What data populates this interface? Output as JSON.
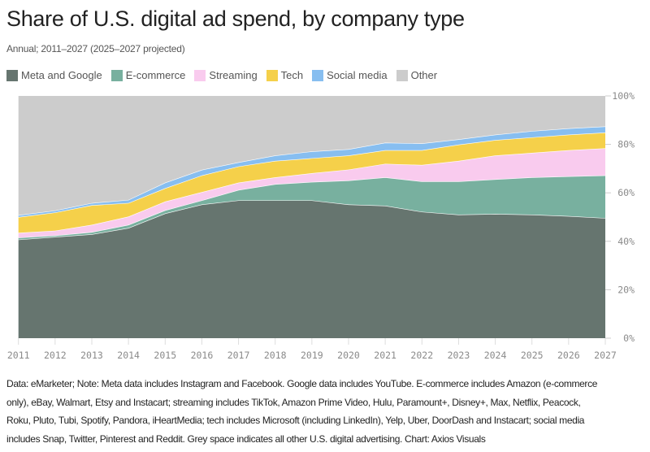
{
  "header": {
    "title": "Share of U.S. digital ad spend, by company type",
    "subtitle": "Annual; 2011–2027 (2025–2027 projected)"
  },
  "chart_data": {
    "type": "area",
    "stacked": true,
    "title": "Share of U.S. digital ad spend, by company type",
    "subtitle": "Annual; 2011–2027 (2025–2027 projected)",
    "x": [
      2011,
      2012,
      2013,
      2014,
      2015,
      2016,
      2017,
      2018,
      2019,
      2020,
      2021,
      2022,
      2023,
      2024,
      2025,
      2026,
      2027
    ],
    "x_tick_labels": [
      "2011",
      "2012",
      "2013",
      "2014",
      "2015",
      "2016",
      "2017",
      "2018",
      "2019",
      "2020",
      "2021",
      "2022",
      "2023",
      "2024",
      "2025",
      "2026",
      "2027"
    ],
    "y_tick_labels": [
      "0%",
      "20%",
      "40%",
      "60%",
      "80%",
      "100%"
    ],
    "y_ticks": [
      0,
      20,
      40,
      60,
      80,
      100
    ],
    "ylim": [
      0,
      100
    ],
    "grid": true,
    "legend_placement": "top",
    "series": [
      {
        "name": "Meta and Google",
        "color": "#66756f",
        "values": [
          40.7,
          41.8,
          42.9,
          45.5,
          51.5,
          55.2,
          56.9,
          56.9,
          56.9,
          55.2,
          54.7,
          52.2,
          51.0,
          51.3,
          51.0,
          50.4,
          49.6
        ]
      },
      {
        "name": "E-commerce",
        "color": "#78b09f",
        "values": [
          0.8,
          0.6,
          0.9,
          1.3,
          1.3,
          1.7,
          4.3,
          6.7,
          7.6,
          9.9,
          11.7,
          12.5,
          13.7,
          14.3,
          15.4,
          16.4,
          17.6
        ]
      },
      {
        "name": "Streaming",
        "color": "#f9cbee",
        "values": [
          2.0,
          2.0,
          3.0,
          3.4,
          3.6,
          3.4,
          3.0,
          2.8,
          3.6,
          4.5,
          5.6,
          6.8,
          8.5,
          9.8,
          10.1,
          10.8,
          11.2
        ]
      },
      {
        "name": "Tech",
        "color": "#f5d04a",
        "values": [
          6.5,
          7.5,
          8.1,
          5.6,
          5.5,
          6.9,
          6.7,
          6.8,
          6.2,
          5.8,
          5.6,
          6.1,
          6.7,
          6.4,
          6.4,
          6.4,
          6.5
        ]
      },
      {
        "name": "Social media",
        "color": "#87bef0",
        "values": [
          0.8,
          0.8,
          0.9,
          1.3,
          2.3,
          2.3,
          1.7,
          2.2,
          2.8,
          2.6,
          3.1,
          2.8,
          2.2,
          2.2,
          2.6,
          2.6,
          2.5
        ]
      },
      {
        "name": "Other",
        "color": "#cccccc",
        "values": [
          49.2,
          47.3,
          44.2,
          42.9,
          35.8,
          30.5,
          27.4,
          24.6,
          22.9,
          22.0,
          19.3,
          19.6,
          17.9,
          16.0,
          14.5,
          13.4,
          12.6
        ]
      }
    ]
  },
  "footnote": {
    "lines": [
      "Data: eMarketer; Note: Meta data includes Instagram and Facebook. Google data includes YouTube. E-commerce includes Amazon (e-commerce",
      "only), eBay, Walmart, Etsy and Instacart; streaming includes TikTok, Amazon Prime Video, Hulu, Paramount+, Disney+, Max, Netflix, Peacock,",
      "Roku, Pluto, Tubi, Spotify, Pandora, iHeartMedia; tech includes Microsoft (including LinkedIn), Yelp, Uber, DoorDash and Instacart; social media",
      "includes Snap, Twitter, Pinterest and Reddit. Grey space indicates all other U.S. digital advertising. Chart: Axios Visuals"
    ]
  }
}
